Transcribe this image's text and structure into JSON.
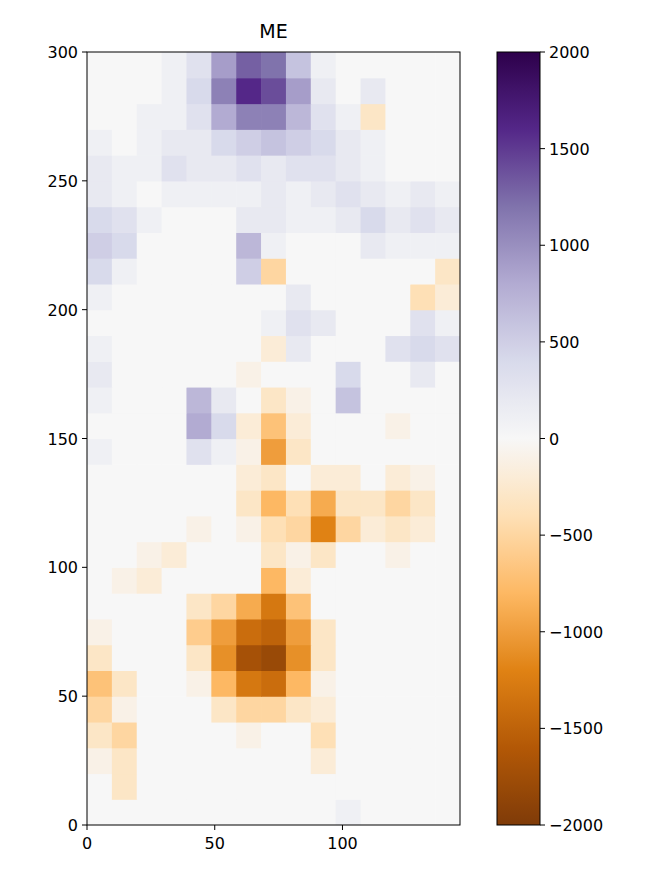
{
  "chart_data": {
    "type": "heatmap",
    "title": "ME",
    "xlim": [
      0,
      146
    ],
    "ylim": [
      0,
      300
    ],
    "xticks": [
      0,
      50,
      100
    ],
    "yticks": [
      0,
      50,
      100,
      150,
      200,
      250,
      300
    ],
    "z": [
      [
        0,
        0,
        0,
        0,
        0,
        0,
        0,
        0,
        0,
        0,
        100,
        0,
        0,
        0,
        0
      ],
      [
        0,
        -300,
        0,
        0,
        0,
        0,
        0,
        0,
        0,
        0,
        0,
        0,
        0,
        0,
        0
      ],
      [
        -100,
        -300,
        0,
        0,
        0,
        0,
        0,
        0,
        0,
        -200,
        0,
        0,
        0,
        0,
        0
      ],
      [
        -300,
        -500,
        0,
        0,
        0,
        0,
        -100,
        0,
        0,
        -400,
        0,
        0,
        0,
        0,
        0
      ],
      [
        -500,
        -100,
        0,
        0,
        0,
        -300,
        -500,
        -500,
        -300,
        -200,
        0,
        0,
        0,
        0,
        0
      ],
      [
        -700,
        -300,
        0,
        0,
        -100,
        -800,
        -1300,
        -1400,
        -800,
        -100,
        0,
        0,
        0,
        0,
        0
      ],
      [
        -300,
        0,
        0,
        0,
        -300,
        -1100,
        -1700,
        -1800,
        -1100,
        -300,
        0,
        0,
        0,
        0,
        0
      ],
      [
        -100,
        0,
        0,
        0,
        -600,
        -1000,
        -1400,
        -1500,
        -1000,
        -300,
        0,
        0,
        0,
        0,
        0
      ],
      [
        0,
        0,
        0,
        0,
        -300,
        -500,
        -900,
        -1300,
        -700,
        0,
        0,
        0,
        0,
        0,
        0
      ],
      [
        0,
        -100,
        -200,
        0,
        0,
        0,
        0,
        -800,
        -200,
        0,
        0,
        0,
        0,
        0,
        0
      ],
      [
        0,
        0,
        -100,
        -200,
        0,
        0,
        0,
        -300,
        -100,
        -300,
        0,
        0,
        -100,
        0,
        0
      ],
      [
        0,
        0,
        0,
        0,
        -100,
        0,
        -100,
        -400,
        -500,
        -1200,
        -500,
        -200,
        -300,
        -200,
        0
      ],
      [
        0,
        0,
        0,
        0,
        0,
        0,
        -300,
        -800,
        -400,
        -900,
        -300,
        -300,
        -500,
        -300,
        0
      ],
      [
        0,
        0,
        0,
        0,
        0,
        0,
        -200,
        -300,
        0,
        -200,
        -200,
        0,
        -200,
        -100,
        0
      ],
      [
        100,
        0,
        0,
        0,
        300,
        100,
        -100,
        -1000,
        -300,
        0,
        0,
        0,
        0,
        0,
        0
      ],
      [
        0,
        0,
        0,
        0,
        800,
        400,
        -200,
        -700,
        -200,
        0,
        0,
        0,
        -100,
        0,
        0
      ],
      [
        100,
        0,
        0,
        0,
        700,
        200,
        0,
        -300,
        -100,
        0,
        600,
        0,
        0,
        0,
        0
      ],
      [
        200,
        0,
        0,
        0,
        0,
        0,
        -100,
        0,
        0,
        0,
        400,
        0,
        0,
        200,
        0
      ],
      [
        100,
        0,
        0,
        0,
        0,
        0,
        0,
        -200,
        200,
        0,
        0,
        0,
        300,
        400,
        300
      ],
      [
        0,
        0,
        0,
        0,
        0,
        0,
        0,
        100,
        300,
        200,
        0,
        0,
        0,
        300,
        100
      ],
      [
        100,
        0,
        0,
        0,
        0,
        0,
        0,
        0,
        200,
        0,
        0,
        0,
        0,
        -400,
        -200
      ],
      [
        400,
        100,
        0,
        0,
        0,
        0,
        500,
        -500,
        0,
        0,
        0,
        0,
        0,
        0,
        -300
      ],
      [
        500,
        400,
        0,
        0,
        0,
        0,
        700,
        100,
        0,
        0,
        0,
        200,
        100,
        100,
        100
      ],
      [
        400,
        300,
        100,
        0,
        0,
        0,
        200,
        200,
        100,
        100,
        200,
        400,
        200,
        300,
        200
      ],
      [
        200,
        100,
        0,
        100,
        100,
        100,
        100,
        200,
        100,
        200,
        300,
        200,
        100,
        200,
        100
      ],
      [
        200,
        100,
        100,
        300,
        200,
        200,
        300,
        200,
        300,
        300,
        200,
        100,
        0,
        0,
        0
      ],
      [
        100,
        0,
        100,
        200,
        200,
        400,
        500,
        600,
        500,
        400,
        200,
        100,
        0,
        0,
        0
      ],
      [
        0,
        0,
        100,
        100,
        300,
        800,
        1100,
        1100,
        700,
        300,
        100,
        -300,
        0,
        0,
        0
      ],
      [
        0,
        0,
        0,
        100,
        400,
        1100,
        1600,
        1400,
        900,
        200,
        0,
        200,
        0,
        0,
        0
      ],
      [
        0,
        0,
        0,
        100,
        300,
        900,
        1300,
        1200,
        600,
        100,
        0,
        0,
        0,
        0,
        0
      ]
    ],
    "colorbar": {
      "lim": [
        -2000,
        2000
      ],
      "ticks": [
        -2000,
        -1500,
        -1000,
        -500,
        0,
        500,
        1000,
        1500,
        2000
      ]
    }
  }
}
